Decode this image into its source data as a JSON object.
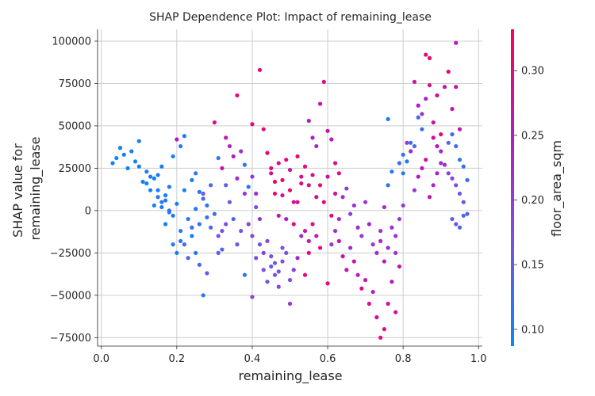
{
  "chart_data": {
    "type": "scatter",
    "title": "SHAP Dependence Plot: Impact of remaining_lease",
    "xlabel": "remaining_lease",
    "ylabel_lines": [
      "SHAP value for",
      "remaining_lease"
    ],
    "xlim": [
      -0.01,
      1.01
    ],
    "ylim": [
      -80000,
      107000
    ],
    "xticks": [
      0.0,
      0.2,
      0.4,
      0.6,
      0.8,
      1.0
    ],
    "xtick_labels": [
      "0.0",
      "0.2",
      "0.4",
      "0.6",
      "0.8",
      "1.0"
    ],
    "yticks": [
      -75000,
      -50000,
      -25000,
      0,
      25000,
      50000,
      75000,
      100000
    ],
    "ytick_labels": [
      "−75000",
      "−50000",
      "−25000",
      "0",
      "25000",
      "50000",
      "75000",
      "100000"
    ],
    "grid": true,
    "colorbar": {
      "label": "floor_area_sqm",
      "range": [
        0.087,
        0.332
      ],
      "ticks": [
        0.1,
        0.15,
        0.2,
        0.25,
        0.3
      ],
      "tick_labels": [
        "0.10",
        "0.15",
        "0.20",
        "0.25",
        "0.30"
      ],
      "cmap_stops": [
        "#008afb",
        "#7d4ee0",
        "#b519c4",
        "#ff0052"
      ]
    },
    "points": [
      [
        0.03,
        28000,
        0.1
      ],
      [
        0.04,
        31000,
        0.1
      ],
      [
        0.05,
        37000,
        0.1
      ],
      [
        0.06,
        33000,
        0.1
      ],
      [
        0.07,
        25000,
        0.1
      ],
      [
        0.08,
        35000,
        0.1
      ],
      [
        0.09,
        29000,
        0.1
      ],
      [
        0.1,
        41000,
        0.1
      ],
      [
        0.11,
        17000,
        0.1
      ],
      [
        0.12,
        23000,
        0.11
      ],
      [
        0.13,
        12000,
        0.1
      ],
      [
        0.14,
        19000,
        0.1
      ],
      [
        0.15,
        21000,
        0.11
      ],
      [
        0.16,
        26000,
        0.1
      ],
      [
        0.17,
        9000,
        0.1
      ],
      [
        0.18,
        14000,
        0.11
      ],
      [
        0.19,
        32000,
        0.1
      ],
      [
        0.2,
        42000,
        0.26
      ],
      [
        0.21,
        38000,
        0.12
      ],
      [
        0.22,
        44000,
        0.1
      ],
      [
        0.1,
        26000,
        0.1
      ],
      [
        0.12,
        16000,
        0.1
      ],
      [
        0.13,
        20000,
        0.11
      ],
      [
        0.15,
        8000,
        0.12
      ],
      [
        0.16,
        2000,
        0.1
      ],
      [
        0.17,
        6000,
        0.11
      ],
      [
        0.18,
        -1000,
        0.12
      ],
      [
        0.19,
        -3000,
        0.1
      ],
      [
        0.2,
        4000,
        0.1
      ],
      [
        0.21,
        -12000,
        0.11
      ],
      [
        0.22,
        -20000,
        0.13
      ],
      [
        0.23,
        -28000,
        0.14
      ],
      [
        0.24,
        -15000,
        0.1
      ],
      [
        0.25,
        -25000,
        0.11
      ],
      [
        0.26,
        -32000,
        0.13
      ],
      [
        0.27,
        -50000,
        0.11
      ],
      [
        0.28,
        -37000,
        0.15
      ],
      [
        0.24,
        18000,
        0.1
      ],
      [
        0.25,
        22000,
        0.12
      ],
      [
        0.26,
        11000,
        0.11
      ],
      [
        0.27,
        7000,
        0.13
      ],
      [
        0.28,
        -4000,
        0.12
      ],
      [
        0.29,
        -10000,
        0.14
      ],
      [
        0.3,
        -2000,
        0.13
      ],
      [
        0.31,
        -15000,
        0.16
      ],
      [
        0.32,
        -23000,
        0.14
      ],
      [
        0.33,
        -8000,
        0.17
      ],
      [
        0.3,
        52000,
        0.29
      ],
      [
        0.31,
        31000,
        0.12
      ],
      [
        0.32,
        25000,
        0.27
      ],
      [
        0.33,
        43000,
        0.26
      ],
      [
        0.34,
        38000,
        0.24
      ],
      [
        0.35,
        32000,
        0.25
      ],
      [
        0.36,
        19000,
        0.22
      ],
      [
        0.36,
        68000,
        0.31
      ],
      [
        0.37,
        35000,
        0.21
      ],
      [
        0.38,
        27000,
        0.12
      ],
      [
        0.38,
        -38000,
        0.12
      ],
      [
        0.39,
        14000,
        0.11
      ],
      [
        0.4,
        51000,
        0.3
      ],
      [
        0.4,
        -51000,
        0.18
      ],
      [
        0.41,
        -28000,
        0.17
      ],
      [
        0.42,
        -20000,
        0.16
      ],
      [
        0.43,
        -35000,
        0.16
      ],
      [
        0.44,
        -42000,
        0.17
      ],
      [
        0.45,
        -33000,
        0.15
      ],
      [
        0.46,
        -38000,
        0.16
      ],
      [
        0.47,
        -45000,
        0.18
      ],
      [
        0.48,
        -30000,
        0.17
      ],
      [
        0.49,
        -25000,
        0.16
      ],
      [
        0.5,
        -41000,
        0.17
      ],
      [
        0.43,
        -25000,
        0.19
      ],
      [
        0.44,
        -18000,
        0.18
      ],
      [
        0.45,
        -27000,
        0.16
      ],
      [
        0.46,
        -31000,
        0.15
      ],
      [
        0.47,
        -36000,
        0.17
      ],
      [
        0.48,
        -22000,
        0.18
      ],
      [
        0.42,
        83000,
        0.31
      ],
      [
        0.43,
        48000,
        0.3
      ],
      [
        0.44,
        34000,
        0.31
      ],
      [
        0.45,
        22000,
        0.29
      ],
      [
        0.46,
        17000,
        0.31
      ],
      [
        0.47,
        28000,
        0.29
      ],
      [
        0.48,
        9000,
        0.27
      ],
      [
        0.49,
        -5000,
        0.25
      ],
      [
        0.5,
        12000,
        0.31
      ],
      [
        0.51,
        -8000,
        0.3
      ],
      [
        0.52,
        5000,
        0.28
      ],
      [
        0.53,
        16000,
        0.3
      ],
      [
        0.54,
        -12000,
        0.27
      ],
      [
        0.55,
        -18000,
        0.26
      ],
      [
        0.56,
        21000,
        0.3
      ],
      [
        0.57,
        8000,
        0.29
      ],
      [
        0.55,
        53000,
        0.25
      ],
      [
        0.56,
        43000,
        0.24
      ],
      [
        0.57,
        38000,
        0.23
      ],
      [
        0.58,
        63000,
        0.27
      ],
      [
        0.59,
        76000,
        0.29
      ],
      [
        0.6,
        47000,
        0.27
      ],
      [
        0.61,
        42000,
        0.26
      ],
      [
        0.62,
        28000,
        0.28
      ],
      [
        0.63,
        22000,
        0.29
      ],
      [
        0.6,
        -43000,
        0.3
      ],
      [
        0.61,
        -20000,
        0.2
      ],
      [
        0.62,
        -12000,
        0.22
      ],
      [
        0.63,
        -18000,
        0.27
      ],
      [
        0.64,
        -27000,
        0.28
      ],
      [
        0.65,
        -35000,
        0.26
      ],
      [
        0.66,
        -22000,
        0.23
      ],
      [
        0.67,
        -30000,
        0.28
      ],
      [
        0.68,
        -38000,
        0.26
      ],
      [
        0.69,
        -46000,
        0.29
      ],
      [
        0.7,
        -41000,
        0.27
      ],
      [
        0.71,
        -55000,
        0.29
      ],
      [
        0.72,
        -48000,
        0.24
      ],
      [
        0.73,
        -63000,
        0.28
      ],
      [
        0.74,
        -75000,
        0.31
      ],
      [
        0.75,
        -70000,
        0.29
      ],
      [
        0.76,
        -55000,
        0.26
      ],
      [
        0.77,
        -42000,
        0.25
      ],
      [
        0.78,
        -60000,
        0.28
      ],
      [
        0.79,
        -33000,
        0.27
      ],
      [
        0.63,
        -5000,
        0.22
      ],
      [
        0.64,
        8000,
        0.21
      ],
      [
        0.65,
        13000,
        0.2
      ],
      [
        0.66,
        -2000,
        0.19
      ],
      [
        0.67,
        3000,
        0.21
      ],
      [
        0.68,
        -10000,
        0.22
      ],
      [
        0.69,
        -15000,
        0.2
      ],
      [
        0.7,
        5000,
        0.21
      ],
      [
        0.71,
        -8000,
        0.23
      ],
      [
        0.72,
        -20000,
        0.21
      ],
      [
        0.73,
        -25000,
        0.22
      ],
      [
        0.74,
        -18000,
        0.24
      ],
      [
        0.75,
        -30000,
        0.25
      ],
      [
        0.76,
        -22000,
        0.23
      ],
      [
        0.77,
        -10000,
        0.22
      ],
      [
        0.78,
        -15000,
        0.21
      ],
      [
        0.79,
        -5000,
        0.2
      ],
      [
        0.8,
        3000,
        0.2
      ],
      [
        0.74,
        -12000,
        0.22
      ],
      [
        0.75,
        2000,
        0.22
      ],
      [
        0.76,
        15000,
        0.12
      ],
      [
        0.77,
        23000,
        0.11
      ],
      [
        0.78,
        -25000,
        0.21
      ],
      [
        0.79,
        28000,
        0.12
      ],
      [
        0.8,
        22000,
        0.11
      ],
      [
        0.76,
        54000,
        0.11
      ],
      [
        0.8,
        33000,
        0.12
      ],
      [
        0.81,
        29000,
        0.11
      ],
      [
        0.82,
        40000,
        0.12
      ],
      [
        0.83,
        38000,
        0.14
      ],
      [
        0.84,
        55000,
        0.13
      ],
      [
        0.85,
        48000,
        0.12
      ],
      [
        0.83,
        76000,
        0.27
      ],
      [
        0.84,
        62000,
        0.25
      ],
      [
        0.85,
        57000,
        0.21
      ],
      [
        0.86,
        66000,
        0.25
      ],
      [
        0.87,
        74000,
        0.29
      ],
      [
        0.88,
        52000,
        0.27
      ],
      [
        0.89,
        68000,
        0.29
      ],
      [
        0.9,
        45000,
        0.3
      ],
      [
        0.91,
        73000,
        0.26
      ],
      [
        0.92,
        82000,
        0.31
      ],
      [
        0.93,
        60000,
        0.27
      ],
      [
        0.94,
        73000,
        0.28
      ],
      [
        0.95,
        48000,
        0.26
      ],
      [
        0.86,
        92000,
        0.31
      ],
      [
        0.87,
        90000,
        0.32
      ],
      [
        0.88,
        43000,
        0.28
      ],
      [
        0.89,
        38000,
        0.25
      ],
      [
        0.9,
        35000,
        0.23
      ],
      [
        0.91,
        27000,
        0.22
      ],
      [
        0.92,
        22000,
        0.19
      ],
      [
        0.93,
        19000,
        0.18
      ],
      [
        0.94,
        15000,
        0.17
      ],
      [
        0.95,
        10000,
        0.16
      ],
      [
        0.96,
        5000,
        0.15
      ],
      [
        0.97,
        -2000,
        0.14
      ],
      [
        0.93,
        45000,
        0.12
      ],
      [
        0.94,
        38000,
        0.13
      ],
      [
        0.95,
        30000,
        0.11
      ],
      [
        0.96,
        26000,
        0.12
      ],
      [
        0.97,
        18000,
        0.13
      ],
      [
        0.92,
        40000,
        0.14
      ],
      [
        0.94,
        99000,
        0.26
      ],
      [
        0.93,
        -5000,
        0.15
      ],
      [
        0.94,
        -8000,
        0.16
      ],
      [
        0.95,
        -10000,
        0.14
      ],
      [
        0.96,
        -3000,
        0.13
      ],
      [
        0.9,
        28000,
        0.22
      ],
      [
        0.89,
        22000,
        0.24
      ],
      [
        0.88,
        15000,
        0.23
      ],
      [
        0.87,
        8000,
        0.27
      ],
      [
        0.86,
        30000,
        0.28
      ],
      [
        0.85,
        25000,
        0.26
      ],
      [
        0.84,
        20000,
        0.25
      ],
      [
        0.83,
        12000,
        0.21
      ],
      [
        0.82,
        35000,
        0.23
      ],
      [
        0.81,
        40000,
        0.2
      ],
      [
        0.52,
        32000,
        0.31
      ],
      [
        0.53,
        20000,
        0.28
      ],
      [
        0.54,
        26000,
        0.3
      ],
      [
        0.55,
        15000,
        0.28
      ],
      [
        0.56,
        -8000,
        0.29
      ],
      [
        0.57,
        -15000,
        0.27
      ],
      [
        0.58,
        -22000,
        0.3
      ],
      [
        0.58,
        15000,
        0.31
      ],
      [
        0.59,
        5000,
        0.3
      ],
      [
        0.6,
        20000,
        0.28
      ],
      [
        0.61,
        -3000,
        0.29
      ],
      [
        0.62,
        10000,
        0.27
      ],
      [
        0.45,
        25000,
        0.3
      ],
      [
        0.46,
        10000,
        0.31
      ],
      [
        0.47,
        -3000,
        0.27
      ],
      [
        0.48,
        18000,
        0.31
      ],
      [
        0.49,
        30000,
        0.3
      ],
      [
        0.5,
        24000,
        0.27
      ],
      [
        0.51,
        5000,
        0.29
      ],
      [
        0.4,
        20000,
        0.2
      ],
      [
        0.41,
        10000,
        0.22
      ],
      [
        0.42,
        -5000,
        0.21
      ],
      [
        0.38,
        10000,
        0.2
      ],
      [
        0.39,
        -8000,
        0.19
      ],
      [
        0.4,
        -15000,
        0.18
      ],
      [
        0.41,
        2000,
        0.17
      ],
      [
        0.37,
        -12000,
        0.16
      ],
      [
        0.36,
        -20000,
        0.15
      ],
      [
        0.35,
        -5000,
        0.14
      ],
      [
        0.34,
        5000,
        0.15
      ],
      [
        0.33,
        15000,
        0.14
      ],
      [
        0.32,
        -12000,
        0.17
      ],
      [
        0.31,
        -25000,
        0.15
      ],
      [
        0.29,
        15000,
        0.13
      ],
      [
        0.28,
        3000,
        0.12
      ],
      [
        0.27,
        10000,
        0.16
      ],
      [
        0.26,
        -8000,
        0.12
      ],
      [
        0.25,
        1000,
        0.11
      ],
      [
        0.24,
        -10000,
        0.13
      ],
      [
        0.23,
        -5000,
        0.12
      ],
      [
        0.22,
        12000,
        0.11
      ],
      [
        0.21,
        -18000,
        0.12
      ],
      [
        0.2,
        -25000,
        0.1
      ],
      [
        0.19,
        -20000,
        0.11
      ],
      [
        0.18,
        0,
        0.11
      ],
      [
        0.17,
        -8000,
        0.1
      ],
      [
        0.16,
        5000,
        0.11
      ],
      [
        0.15,
        12000,
        0.1
      ],
      [
        0.14,
        3000,
        0.1
      ],
      [
        0.5,
        -55000,
        0.2
      ],
      [
        0.51,
        -35000,
        0.19
      ],
      [
        0.52,
        -28000,
        0.23
      ],
      [
        0.53,
        -15000,
        0.22
      ],
      [
        0.54,
        -38000,
        0.3
      ],
      [
        0.55,
        -25000,
        0.29
      ]
    ]
  }
}
